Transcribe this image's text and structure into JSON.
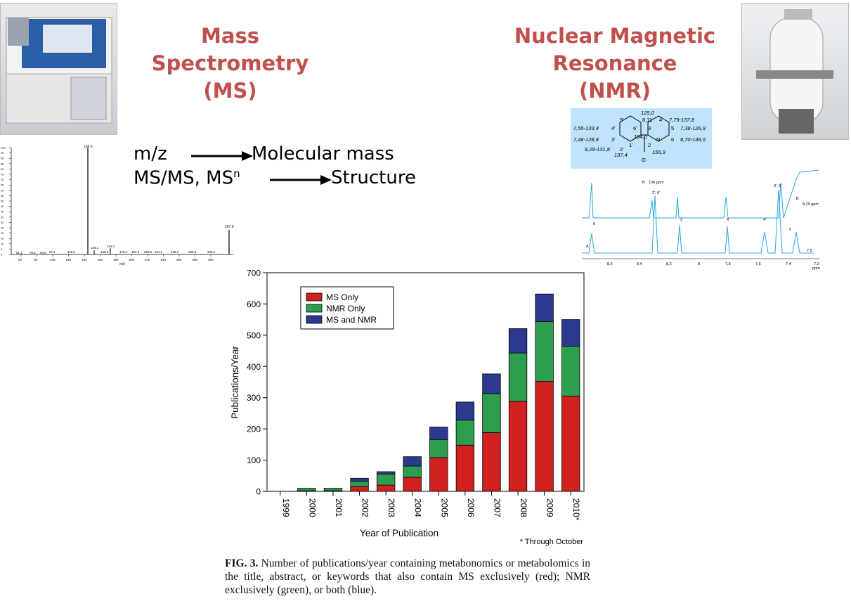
{
  "left_title": {
    "line1": "Mass",
    "line2": "Spectrometry",
    "line3": "(MS)"
  },
  "right_title": {
    "line1": "Nuclear Magnetic",
    "line2": "Resonance",
    "line3": "(NMR)"
  },
  "ms_relations": [
    {
      "left": "m/z",
      "right": "Molecular mass"
    },
    {
      "left": "MS/MS, MS",
      "sup": "n",
      "right": "Structure"
    }
  ],
  "ms_spectrum": {
    "peak_labels": [
      "136.0",
      "297.9",
      "145.1",
      "162.1",
      "61.1",
      "75.1",
      "93.8",
      "97.1",
      "119.2",
      "169.9",
      "178.4",
      "191.5",
      "208.2",
      "221.2",
      "235.4",
      "256.8",
      "280.1"
    ],
    "x_ticks": [
      "60",
      "80",
      "100",
      "120",
      "140",
      "160",
      "180",
      "200",
      "220",
      "240",
      "260",
      "280",
      "300"
    ],
    "x_label": "m/z",
    "y_ticks": [
      "100",
      "95",
      "90",
      "85",
      "80",
      "75",
      "70",
      "65",
      "60",
      "55",
      "50",
      "45",
      "40",
      "35",
      "30",
      "25",
      "20",
      "15",
      "10",
      "5",
      "0"
    ]
  },
  "nmr_structure": {
    "labels": [
      "125,0",
      "8,11",
      "4",
      "7,79-137,8",
      "5'",
      "6'",
      "3",
      "5",
      "7,38-126,9",
      "7,55-133,4",
      "4'",
      "194,0",
      "N",
      "6",
      "8,70-149,6",
      "7,46-128,8",
      "3'",
      "1'",
      "2",
      "8,29-131,8",
      "2'",
      "137,4",
      "155,9",
      "O"
    ]
  },
  "nmr_spectrum": {
    "x_ticks": [
      "8,6",
      "8,4",
      "8,2",
      "8",
      "7,8",
      "7,6",
      "7,4",
      "7,2"
    ],
    "x_unit": "ppm",
    "annotations": [
      "B",
      "136 ppm",
      "2', 6'",
      "3",
      "4",
      "3', 5'",
      "4'",
      "5",
      "6",
      "A",
      "B",
      "8,29 ppm",
      "7,5"
    ]
  },
  "chart_data": {
    "type": "bar",
    "stacked": true,
    "categories": [
      "1999",
      "2000",
      "2001",
      "2002",
      "2003",
      "2004",
      "2005",
      "2006",
      "2007",
      "2008",
      "2009",
      "2010*"
    ],
    "series": [
      {
        "name": "MS Only",
        "color": "#d02020",
        "values": [
          0,
          2,
          2,
          15,
          20,
          45,
          108,
          148,
          188,
          288,
          352,
          305
        ]
      },
      {
        "name": "NMR Only",
        "color": "#2e9e4e",
        "values": [
          0,
          8,
          8,
          17,
          35,
          36,
          58,
          80,
          125,
          155,
          192,
          160
        ]
      },
      {
        "name": "MS and NMR",
        "color": "#2b3a8f",
        "values": [
          0,
          0,
          0,
          10,
          8,
          30,
          40,
          58,
          63,
          78,
          88,
          85
        ]
      }
    ],
    "xlabel": "Year of Publication",
    "ylabel": "Publications/Year",
    "ylim": [
      0,
      700
    ],
    "yticks": [
      0,
      100,
      200,
      300,
      400,
      500,
      600,
      700
    ],
    "note": "* Through October",
    "legend": "top-left",
    "grid": false
  },
  "caption": {
    "label": "FIG. 3.",
    "text": " Number of publications/year containing metabonomics or metabolomics in the title, abstract, or keywords that also contain MS exclusively (red); NMR exclusively (green), or both (blue)."
  }
}
